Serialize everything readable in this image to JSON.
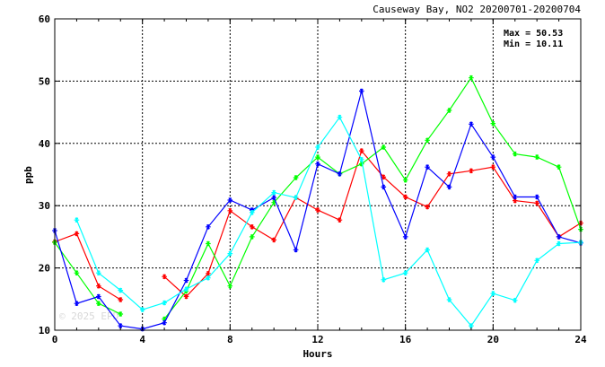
{
  "chart_data": {
    "type": "line",
    "title": "Causeway Bay, NO2 20200701-20200704",
    "xlabel": "Hours",
    "ylabel": "ppb",
    "xlim": [
      0,
      24
    ],
    "ylim": [
      10,
      60
    ],
    "x_ticks": [
      "0",
      "4",
      "8",
      "12",
      "16",
      "20",
      "24"
    ],
    "y_ticks": [
      "10",
      "20",
      "30",
      "40",
      "50",
      "60"
    ],
    "grid": true,
    "annotations": [
      "Max = 50.53",
      "Min = 10.11"
    ],
    "watermark": "© 2025 EPD",
    "x": [
      0,
      1,
      2,
      3,
      4,
      5,
      6,
      7,
      8,
      9,
      10,
      11,
      12,
      13,
      14,
      15,
      16,
      17,
      18,
      19,
      20,
      21,
      22,
      23,
      24
    ],
    "series": [
      {
        "color": "#ff0000",
        "values": [
          24.2,
          25.5,
          17.1,
          14.9,
          null,
          18.6,
          15.4,
          19.1,
          29.2,
          26.6,
          24.5,
          31.3,
          29.3,
          27.7,
          38.8,
          34.6,
          31.4,
          29.8,
          35.1,
          35.6,
          36.2,
          30.8,
          30.4,
          25.0,
          27.2
        ]
      },
      {
        "color": "#00ff00",
        "values": [
          24.1,
          19.2,
          14.3,
          12.6,
          null,
          11.8,
          16.3,
          23.9,
          17.1,
          25.0,
          30.5,
          34.5,
          37.8,
          35.1,
          36.7,
          39.4,
          34.1,
          40.5,
          45.3,
          50.53,
          43.2,
          38.3,
          37.8,
          36.2,
          26.2
        ]
      },
      {
        "color": "#0000ff",
        "values": [
          26.0,
          14.3,
          15.4,
          10.7,
          10.2,
          11.2,
          18.0,
          26.6,
          30.9,
          29.3,
          31.3,
          22.9,
          36.7,
          35.1,
          48.4,
          33.0,
          25.0,
          36.2,
          33.0,
          43.1,
          37.8,
          31.4,
          31.4,
          25.0,
          24.0
        ]
      },
      {
        "color": "#00ffff",
        "values": [
          null,
          27.7,
          19.2,
          16.4,
          13.3,
          14.4,
          16.6,
          18.4,
          22.3,
          28.9,
          32.1,
          31.3,
          39.4,
          44.2,
          37.4,
          18.1,
          19.2,
          22.9,
          14.9,
          10.7,
          15.9,
          14.8,
          21.2,
          23.9,
          24.1
        ]
      }
    ]
  }
}
